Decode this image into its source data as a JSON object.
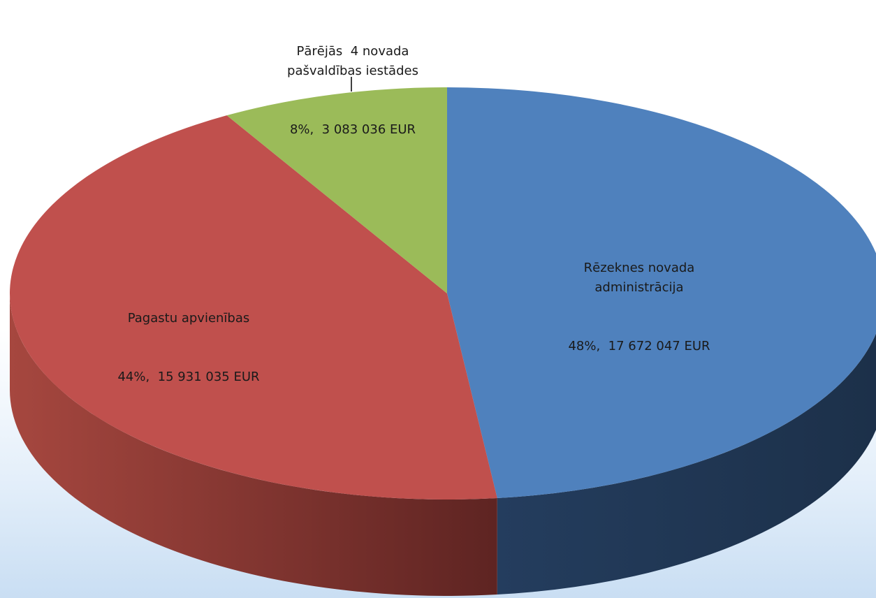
{
  "chart_data": {
    "type": "pie3d",
    "categories": [
      "Rēzeknes novada administrācija",
      "Pagastu apvienības",
      "Pārējās  4 novada pašvaldības iestādes"
    ],
    "values": [
      17672047,
      15931035,
      3083036
    ],
    "value_labels": [
      "48%,  17 672 047 EUR",
      "44%,  15 931 035 EUR",
      "8%,  3 083 036 EUR"
    ],
    "colors": [
      "#4f81bd",
      "#c0504d",
      "#9bbb59"
    ]
  }
}
